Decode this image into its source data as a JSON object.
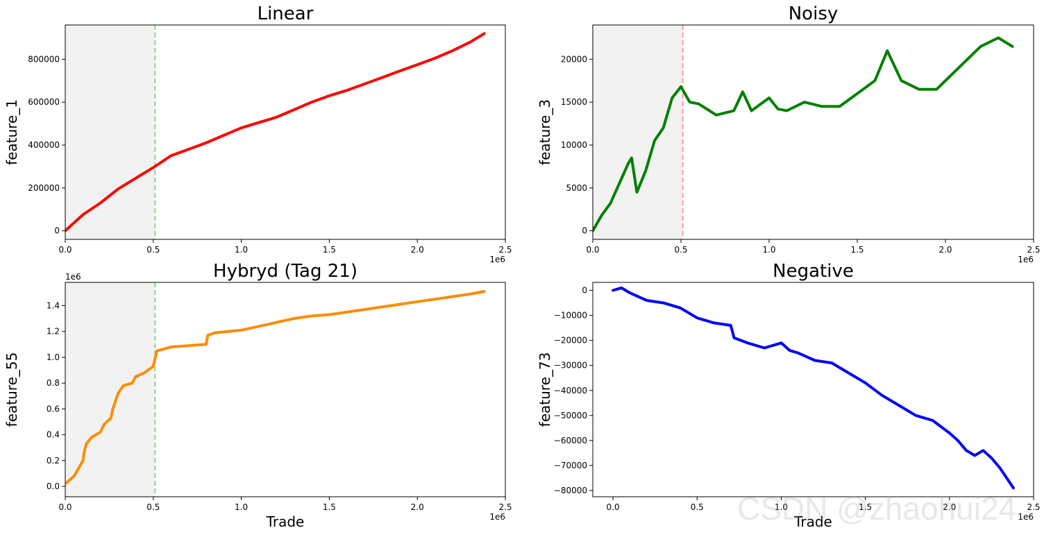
{
  "watermark": "CSDN @zhaohui24",
  "colors": {
    "shade": "#f2f2f2",
    "frame": "#000000"
  },
  "chart_data": [
    {
      "type": "line",
      "title": "Linear",
      "xlabel": "",
      "ylabel": "feature_1",
      "x_offset_text": "1e6",
      "y_offset_text": "",
      "color": "#ff0000",
      "xlim": [
        0,
        2.5
      ],
      "ylim": [
        -40000,
        960000
      ],
      "x_ticks": [
        0,
        0.5,
        1.0,
        1.5,
        2.0,
        2.5
      ],
      "x_tick_labels": [
        "0.0",
        "0.5",
        "1.0",
        "1.5",
        "2.0",
        "2.5"
      ],
      "y_ticks": [
        0,
        200000,
        400000,
        600000,
        800000
      ],
      "y_tick_labels": [
        "0",
        "200000",
        "400000",
        "600000",
        "800000"
      ],
      "shade_span": [
        0,
        0.51
      ],
      "split_line": {
        "x": 0.51,
        "color": "#8fd18f"
      },
      "x": [
        0,
        0.1,
        0.2,
        0.3,
        0.4,
        0.51,
        0.6,
        0.7,
        0.8,
        0.9,
        1.0,
        1.1,
        1.2,
        1.3,
        1.4,
        1.5,
        1.6,
        1.7,
        1.8,
        1.9,
        2.0,
        2.1,
        2.2,
        2.3,
        2.38
      ],
      "y": [
        0,
        75000,
        130000,
        195000,
        245000,
        300000,
        350000,
        380000,
        410000,
        445000,
        480000,
        505000,
        530000,
        565000,
        600000,
        630000,
        655000,
        685000,
        715000,
        745000,
        775000,
        805000,
        840000,
        880000,
        920000
      ]
    },
    {
      "type": "line",
      "title": "Noisy",
      "xlabel": "",
      "ylabel": "feature_3",
      "x_offset_text": "1e6",
      "y_offset_text": "",
      "color": "#008000",
      "xlim": [
        0,
        2.5
      ],
      "ylim": [
        -1000,
        24000
      ],
      "x_ticks": [
        0,
        0.5,
        1.0,
        1.5,
        2.0,
        2.5
      ],
      "x_tick_labels": [
        "0.0",
        "0.5",
        "1.0",
        "1.5",
        "2.0",
        "2.5"
      ],
      "y_ticks": [
        0,
        5000,
        10000,
        15000,
        20000
      ],
      "y_tick_labels": [
        "0",
        "5000",
        "10000",
        "15000",
        "20000"
      ],
      "shade_span": [
        0,
        0.51
      ],
      "split_line": {
        "x": 0.51,
        "color": "#ff9a9a"
      },
      "x": [
        0,
        0.05,
        0.1,
        0.15,
        0.2,
        0.22,
        0.25,
        0.3,
        0.35,
        0.4,
        0.45,
        0.5,
        0.55,
        0.6,
        0.7,
        0.8,
        0.85,
        0.9,
        1.0,
        1.05,
        1.1,
        1.2,
        1.3,
        1.4,
        1.5,
        1.6,
        1.67,
        1.75,
        1.85,
        1.95,
        2.0,
        2.1,
        2.2,
        2.3,
        2.38
      ],
      "y": [
        0,
        1800,
        3200,
        5500,
        7800,
        8500,
        4500,
        7000,
        10500,
        12000,
        15500,
        16800,
        15000,
        14800,
        13500,
        14000,
        16200,
        14000,
        15500,
        14200,
        14000,
        15000,
        14500,
        14500,
        16000,
        17500,
        21000,
        17500,
        16500,
        16500,
        17500,
        19500,
        21500,
        22500,
        21500
      ]
    },
    {
      "type": "line",
      "title": "Hybryd (Tag 21)",
      "xlabel": "Trade",
      "ylabel": "feature_55",
      "x_offset_text": "1e6",
      "y_offset_text": "1e6",
      "color": "#ff8c00",
      "xlim": [
        0,
        2.5
      ],
      "ylim": [
        -0.08,
        1.58
      ],
      "x_ticks": [
        0,
        0.5,
        1.0,
        1.5,
        2.0,
        2.5
      ],
      "x_tick_labels": [
        "0.0",
        "0.5",
        "1.0",
        "1.5",
        "2.0",
        "2.5"
      ],
      "y_ticks": [
        0,
        0.2,
        0.4,
        0.6,
        0.8,
        1.0,
        1.2,
        1.4
      ],
      "y_tick_labels": [
        "0.0",
        "0.2",
        "0.4",
        "0.6",
        "0.8",
        "1.0",
        "1.2",
        "1.4"
      ],
      "shade_span": [
        0,
        0.51
      ],
      "split_line": {
        "x": 0.51,
        "color": "#8fd18f"
      },
      "x": [
        0,
        0.05,
        0.08,
        0.1,
        0.11,
        0.12,
        0.15,
        0.2,
        0.22,
        0.26,
        0.27,
        0.3,
        0.33,
        0.38,
        0.4,
        0.45,
        0.5,
        0.52,
        0.55,
        0.6,
        0.7,
        0.8,
        0.81,
        0.85,
        1.0,
        1.1,
        1.2,
        1.3,
        1.4,
        1.5,
        1.6,
        1.7,
        1.8,
        1.9,
        2.0,
        2.1,
        2.2,
        2.3,
        2.38
      ],
      "y": [
        0.02,
        0.08,
        0.15,
        0.2,
        0.28,
        0.33,
        0.38,
        0.42,
        0.48,
        0.53,
        0.6,
        0.72,
        0.78,
        0.8,
        0.85,
        0.88,
        0.93,
        1.05,
        1.06,
        1.08,
        1.09,
        1.1,
        1.17,
        1.19,
        1.21,
        1.24,
        1.27,
        1.3,
        1.32,
        1.33,
        1.35,
        1.37,
        1.39,
        1.41,
        1.43,
        1.45,
        1.47,
        1.49,
        1.51
      ]
    },
    {
      "type": "line",
      "title": "Negative",
      "xlabel": "Trade",
      "ylabel": "feature_73",
      "x_offset_text": "1e6",
      "y_offset_text": "",
      "color": "#0000ff",
      "xlim": [
        -0.12,
        2.5
      ],
      "ylim": [
        -82500,
        3200
      ],
      "x_ticks": [
        0,
        0.5,
        1.0,
        1.5,
        2.0,
        2.5
      ],
      "x_tick_labels": [
        "0.0",
        "0.5",
        "1.0",
        "1.5",
        "2.0",
        "2.5"
      ],
      "y_ticks": [
        0,
        -10000,
        -20000,
        -30000,
        -40000,
        -50000,
        -60000,
        -70000,
        -80000
      ],
      "y_tick_labels": [
        "0",
        "−10000",
        "−20000",
        "−30000",
        "−40000",
        "−50000",
        "−60000",
        "−70000",
        "−80000"
      ],
      "shade_span": null,
      "split_line": null,
      "x": [
        0,
        0.05,
        0.1,
        0.2,
        0.3,
        0.4,
        0.5,
        0.6,
        0.7,
        0.72,
        0.8,
        0.9,
        1.0,
        1.05,
        1.1,
        1.2,
        1.3,
        1.4,
        1.5,
        1.6,
        1.7,
        1.8,
        1.9,
        2.0,
        2.05,
        2.1,
        2.15,
        2.2,
        2.25,
        2.3,
        2.38
      ],
      "y": [
        0,
        1000,
        -1000,
        -4000,
        -5000,
        -7000,
        -11000,
        -13000,
        -14000,
        -19000,
        -21000,
        -23000,
        -21000,
        -24000,
        -25000,
        -28000,
        -29000,
        -33000,
        -37000,
        -42000,
        -46000,
        -50000,
        -52000,
        -57000,
        -60000,
        -64000,
        -66000,
        -64000,
        -67000,
        -71000,
        -79000
      ]
    }
  ]
}
